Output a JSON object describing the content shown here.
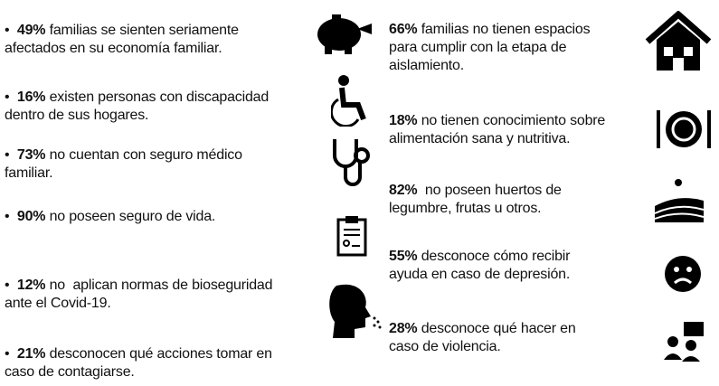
{
  "bullet": "•",
  "left": [
    {
      "percent": "49%",
      "lines": [
        "familias se sienten seriamente",
        "afectados en su economía familiar."
      ]
    },
    {
      "percent": "16%",
      "lines": [
        "existen personas con discapacidad",
        "dentro de sus hogares."
      ]
    },
    {
      "percent": "73%",
      "lines": [
        "no cuentan con seguro médico",
        "familiar."
      ]
    },
    {
      "percent": "90%",
      "lines": [
        "no poseen seguro de vida."
      ]
    },
    {
      "percent": "12%",
      "lines": [
        "no  aplican normas de bioseguridad",
        "ante el Covid-19."
      ]
    },
    {
      "percent": "21%",
      "lines": [
        "desconocen qué acciones tomar en",
        "caso de contagiarse."
      ]
    }
  ],
  "right": [
    {
      "percent": "66%",
      "lines": [
        "familias no tienen espacios",
        "para cumplir con la etapa de",
        "aislamiento."
      ]
    },
    {
      "percent": "18%",
      "lines": [
        "no tienen conocimiento sobre",
        "alimentación sana y nutritiva."
      ]
    },
    {
      "percent": "82%",
      "lines": [
        " no poseen huertos de",
        "legumbre, frutas u otros."
      ]
    },
    {
      "percent": "55%",
      "lines": [
        "desconoce cómo recibir",
        "ayuda en caso de depresión."
      ]
    },
    {
      "percent": "28%",
      "lines": [
        "desconoce qué hacer en",
        "caso de violencia."
      ]
    }
  ]
}
